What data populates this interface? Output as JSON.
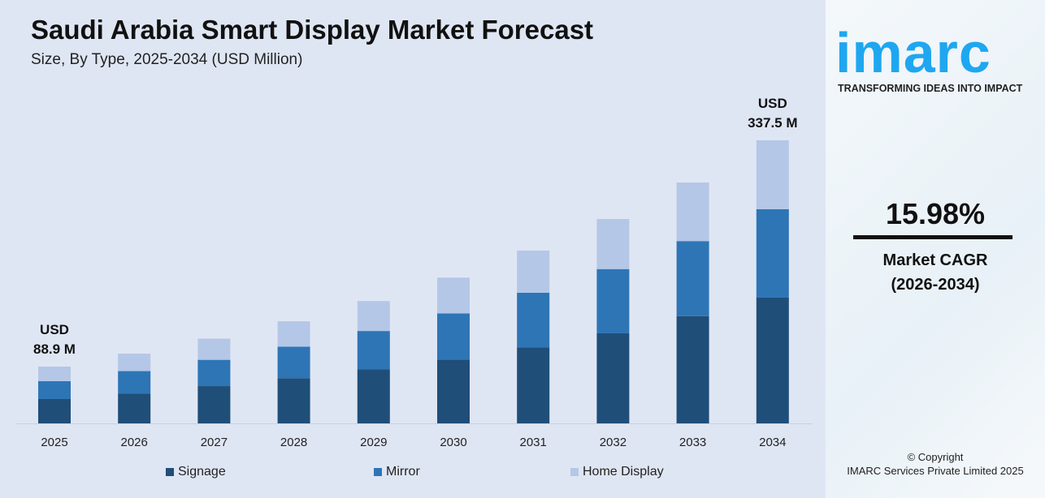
{
  "chart_data": {
    "type": "bar",
    "stacked": true,
    "title": "Saudi Arabia Smart Display Market Forecast",
    "subtitle": "Size, By Type, 2025-2034 (USD Million)",
    "categories": [
      "2025",
      "2026",
      "2027",
      "2028",
      "2029",
      "2030",
      "2031",
      "2032",
      "2033",
      "2034"
    ],
    "series": [
      {
        "name": "Signage",
        "color": "#1f4e79",
        "values": [
          38.1,
          44.2,
          52.6,
          61.3,
          70.9,
          81.8,
          95.0,
          110.6,
          129.6,
          149.9
        ]
      },
      {
        "name": "Mirror",
        "color": "#2e75b6",
        "values": [
          27.9,
          33.1,
          37.1,
          42.8,
          50.6,
          58.9,
          68.6,
          78.9,
          90.7,
          105.4
        ]
      },
      {
        "name": "Home Display",
        "color": "#b4c7e7",
        "values": [
          22.9,
          25.8,
          29.9,
          34.6,
          39.4,
          45.9,
          52.8,
          61.5,
          70.8,
          82.2
        ]
      }
    ],
    "annotations": [
      {
        "category": "2025",
        "line1": "USD",
        "line2": "88.9 M"
      },
      {
        "category": "2034",
        "line1": "USD",
        "line2": "337.5 M"
      }
    ],
    "grid": false,
    "legend": "bottom"
  },
  "brand": {
    "logo": "imarc",
    "tagline": "TRANSFORMING IDEAS INTO IMPACT",
    "accent": "#1ea7f0"
  },
  "cagr": {
    "value": "15.98%",
    "label": "Market CAGR",
    "period": "(2026-2034)"
  },
  "copyright": {
    "line1": "© Copyright",
    "line2": "IMARC Services Private Limited 2025"
  }
}
